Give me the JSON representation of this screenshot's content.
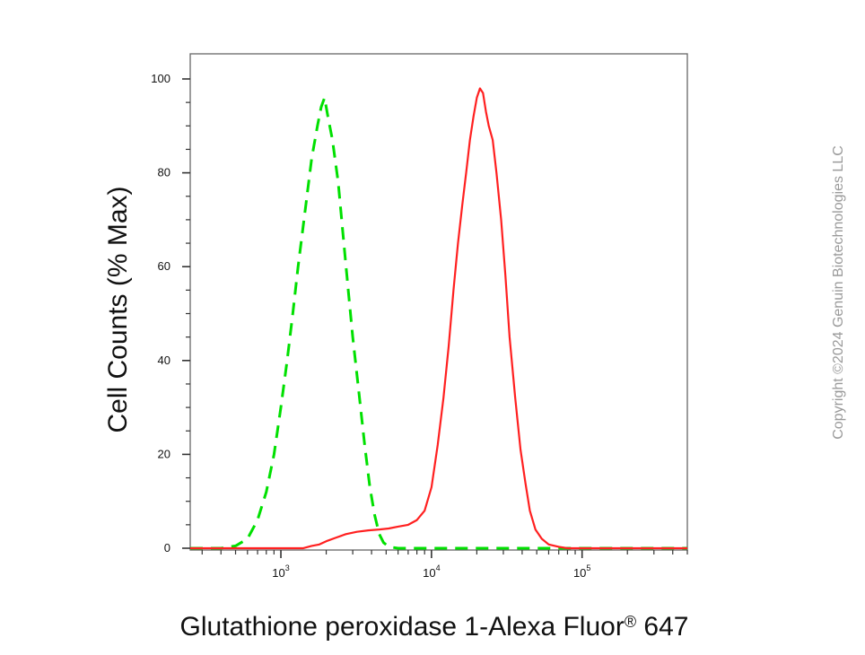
{
  "chart_data": {
    "type": "line",
    "xscale": "log",
    "xlim": [
      250,
      500000
    ],
    "ylim": [
      0,
      105
    ],
    "xlabel": "Glutathione peroxidase 1-Alexa Fluor",
    "xlabel_mark": "®",
    "xlabel_suffix": " 647",
    "ylabel": "Cell Counts (% Max)",
    "y_ticks": [
      "0",
      "20",
      "40",
      "60",
      "80",
      "100"
    ],
    "x_ticks": [
      {
        "base": "10",
        "exp": "3"
      },
      {
        "base": "10",
        "exp": "4"
      },
      {
        "base": "10",
        "exp": "5"
      }
    ],
    "grid": false,
    "series": [
      {
        "style": "dashed",
        "color": "#00e000",
        "points": [
          [
            250,
            0
          ],
          [
            400,
            0
          ],
          [
            500,
            0.5
          ],
          [
            600,
            2
          ],
          [
            700,
            6
          ],
          [
            800,
            12
          ],
          [
            900,
            20
          ],
          [
            1000,
            30
          ],
          [
            1100,
            40
          ],
          [
            1200,
            50
          ],
          [
            1300,
            60
          ],
          [
            1450,
            72
          ],
          [
            1600,
            83
          ],
          [
            1750,
            90
          ],
          [
            1850,
            94
          ],
          [
            1950,
            96
          ],
          [
            2050,
            92
          ],
          [
            2200,
            87
          ],
          [
            2400,
            78
          ],
          [
            2600,
            66
          ],
          [
            2800,
            55
          ],
          [
            3000,
            45
          ],
          [
            3300,
            33
          ],
          [
            3600,
            22
          ],
          [
            3900,
            13
          ],
          [
            4200,
            7
          ],
          [
            4500,
            3
          ],
          [
            4800,
            1.2
          ],
          [
            5200,
            0.3
          ],
          [
            6000,
            0
          ],
          [
            500000,
            0
          ]
        ]
      },
      {
        "style": "solid",
        "color": "#ff2020",
        "points": [
          [
            250,
            0
          ],
          [
            1400,
            0
          ],
          [
            1600,
            0.5
          ],
          [
            1800,
            0.8
          ],
          [
            2000,
            1.5
          ],
          [
            2300,
            2.2
          ],
          [
            2700,
            3
          ],
          [
            3200,
            3.5
          ],
          [
            3800,
            3.8
          ],
          [
            4500,
            4
          ],
          [
            5200,
            4.2
          ],
          [
            6000,
            4.6
          ],
          [
            7000,
            5
          ],
          [
            8000,
            6
          ],
          [
            9000,
            8
          ],
          [
            10000,
            13
          ],
          [
            11000,
            22
          ],
          [
            12000,
            32
          ],
          [
            13000,
            43
          ],
          [
            14000,
            55
          ],
          [
            15000,
            65
          ],
          [
            16000,
            73
          ],
          [
            17000,
            80
          ],
          [
            18000,
            87
          ],
          [
            19000,
            92
          ],
          [
            20000,
            96
          ],
          [
            21000,
            98
          ],
          [
            22000,
            97
          ],
          [
            23000,
            93
          ],
          [
            24000,
            90
          ],
          [
            25500,
            87
          ],
          [
            27000,
            80
          ],
          [
            29000,
            70
          ],
          [
            31000,
            58
          ],
          [
            33000,
            45
          ],
          [
            36000,
            32
          ],
          [
            39000,
            21
          ],
          [
            42000,
            14
          ],
          [
            45000,
            8
          ],
          [
            49000,
            4
          ],
          [
            54000,
            2
          ],
          [
            60000,
            0.8
          ],
          [
            70000,
            0.3
          ],
          [
            80000,
            0
          ],
          [
            500000,
            0
          ]
        ]
      }
    ]
  },
  "watermark": "Copyright ©2024 Genuin Biotechnologies LLC"
}
